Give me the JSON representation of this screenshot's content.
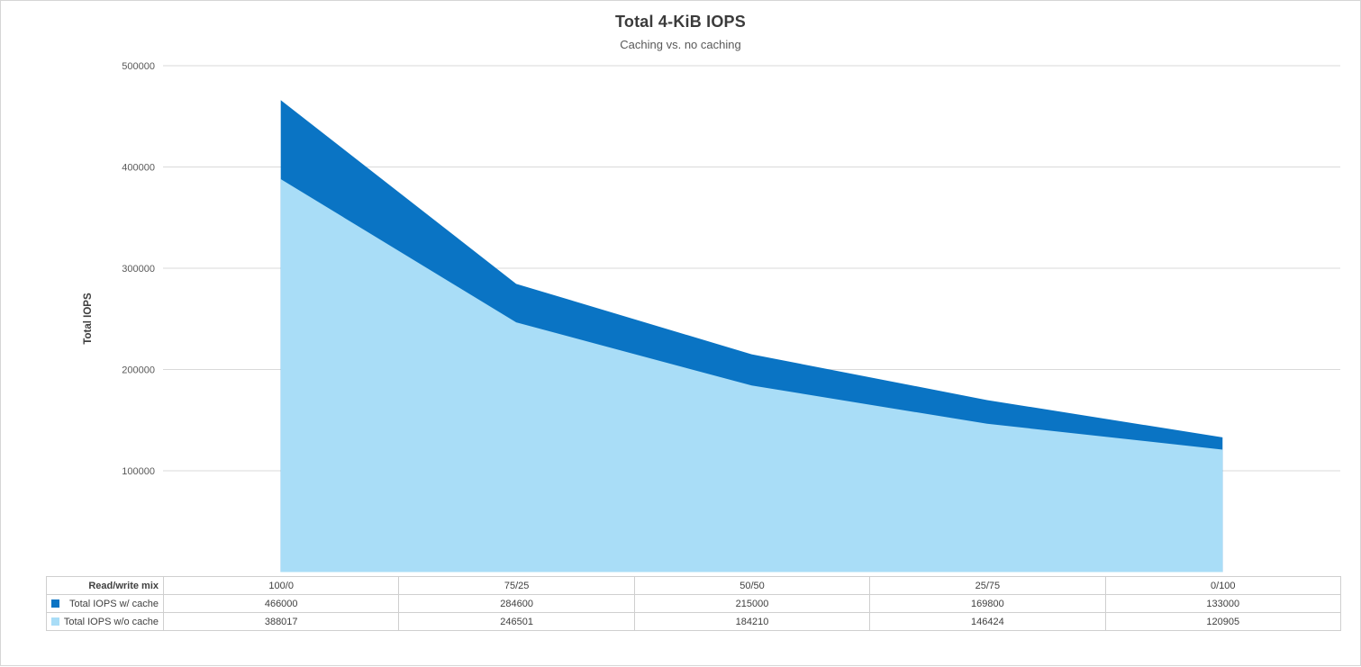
{
  "chart": {
    "title": "Total 4-KiB IOPS",
    "subtitle": "Caching vs. no caching",
    "y_axis_label": "Total IOPS"
  },
  "chart_data": {
    "type": "area",
    "title": "Total 4-KiB IOPS",
    "subtitle": "Caching vs. no caching",
    "xlabel": "Read/write mix",
    "ylabel": "Total IOPS",
    "category_label": "Read/write mix",
    "categories": [
      "100/0",
      "75/25",
      "50/50",
      "25/75",
      "0/100"
    ],
    "series": [
      {
        "name": "Total IOPS w/ cache",
        "color": "#0a74c4",
        "values": [
          466000,
          284600,
          215000,
          169800,
          133000
        ]
      },
      {
        "name": "Total IOPS w/o cache",
        "color": "#a9ddf7",
        "values": [
          388017,
          246501,
          184210,
          146424,
          120905
        ]
      }
    ],
    "ylim": [
      0,
      500000
    ],
    "y_ticks": [
      100000,
      200000,
      300000,
      400000,
      500000
    ],
    "grid": true,
    "gridline_color": "#d9d9d9",
    "tick_label_color": "#595959",
    "legend_position": "data-table"
  }
}
